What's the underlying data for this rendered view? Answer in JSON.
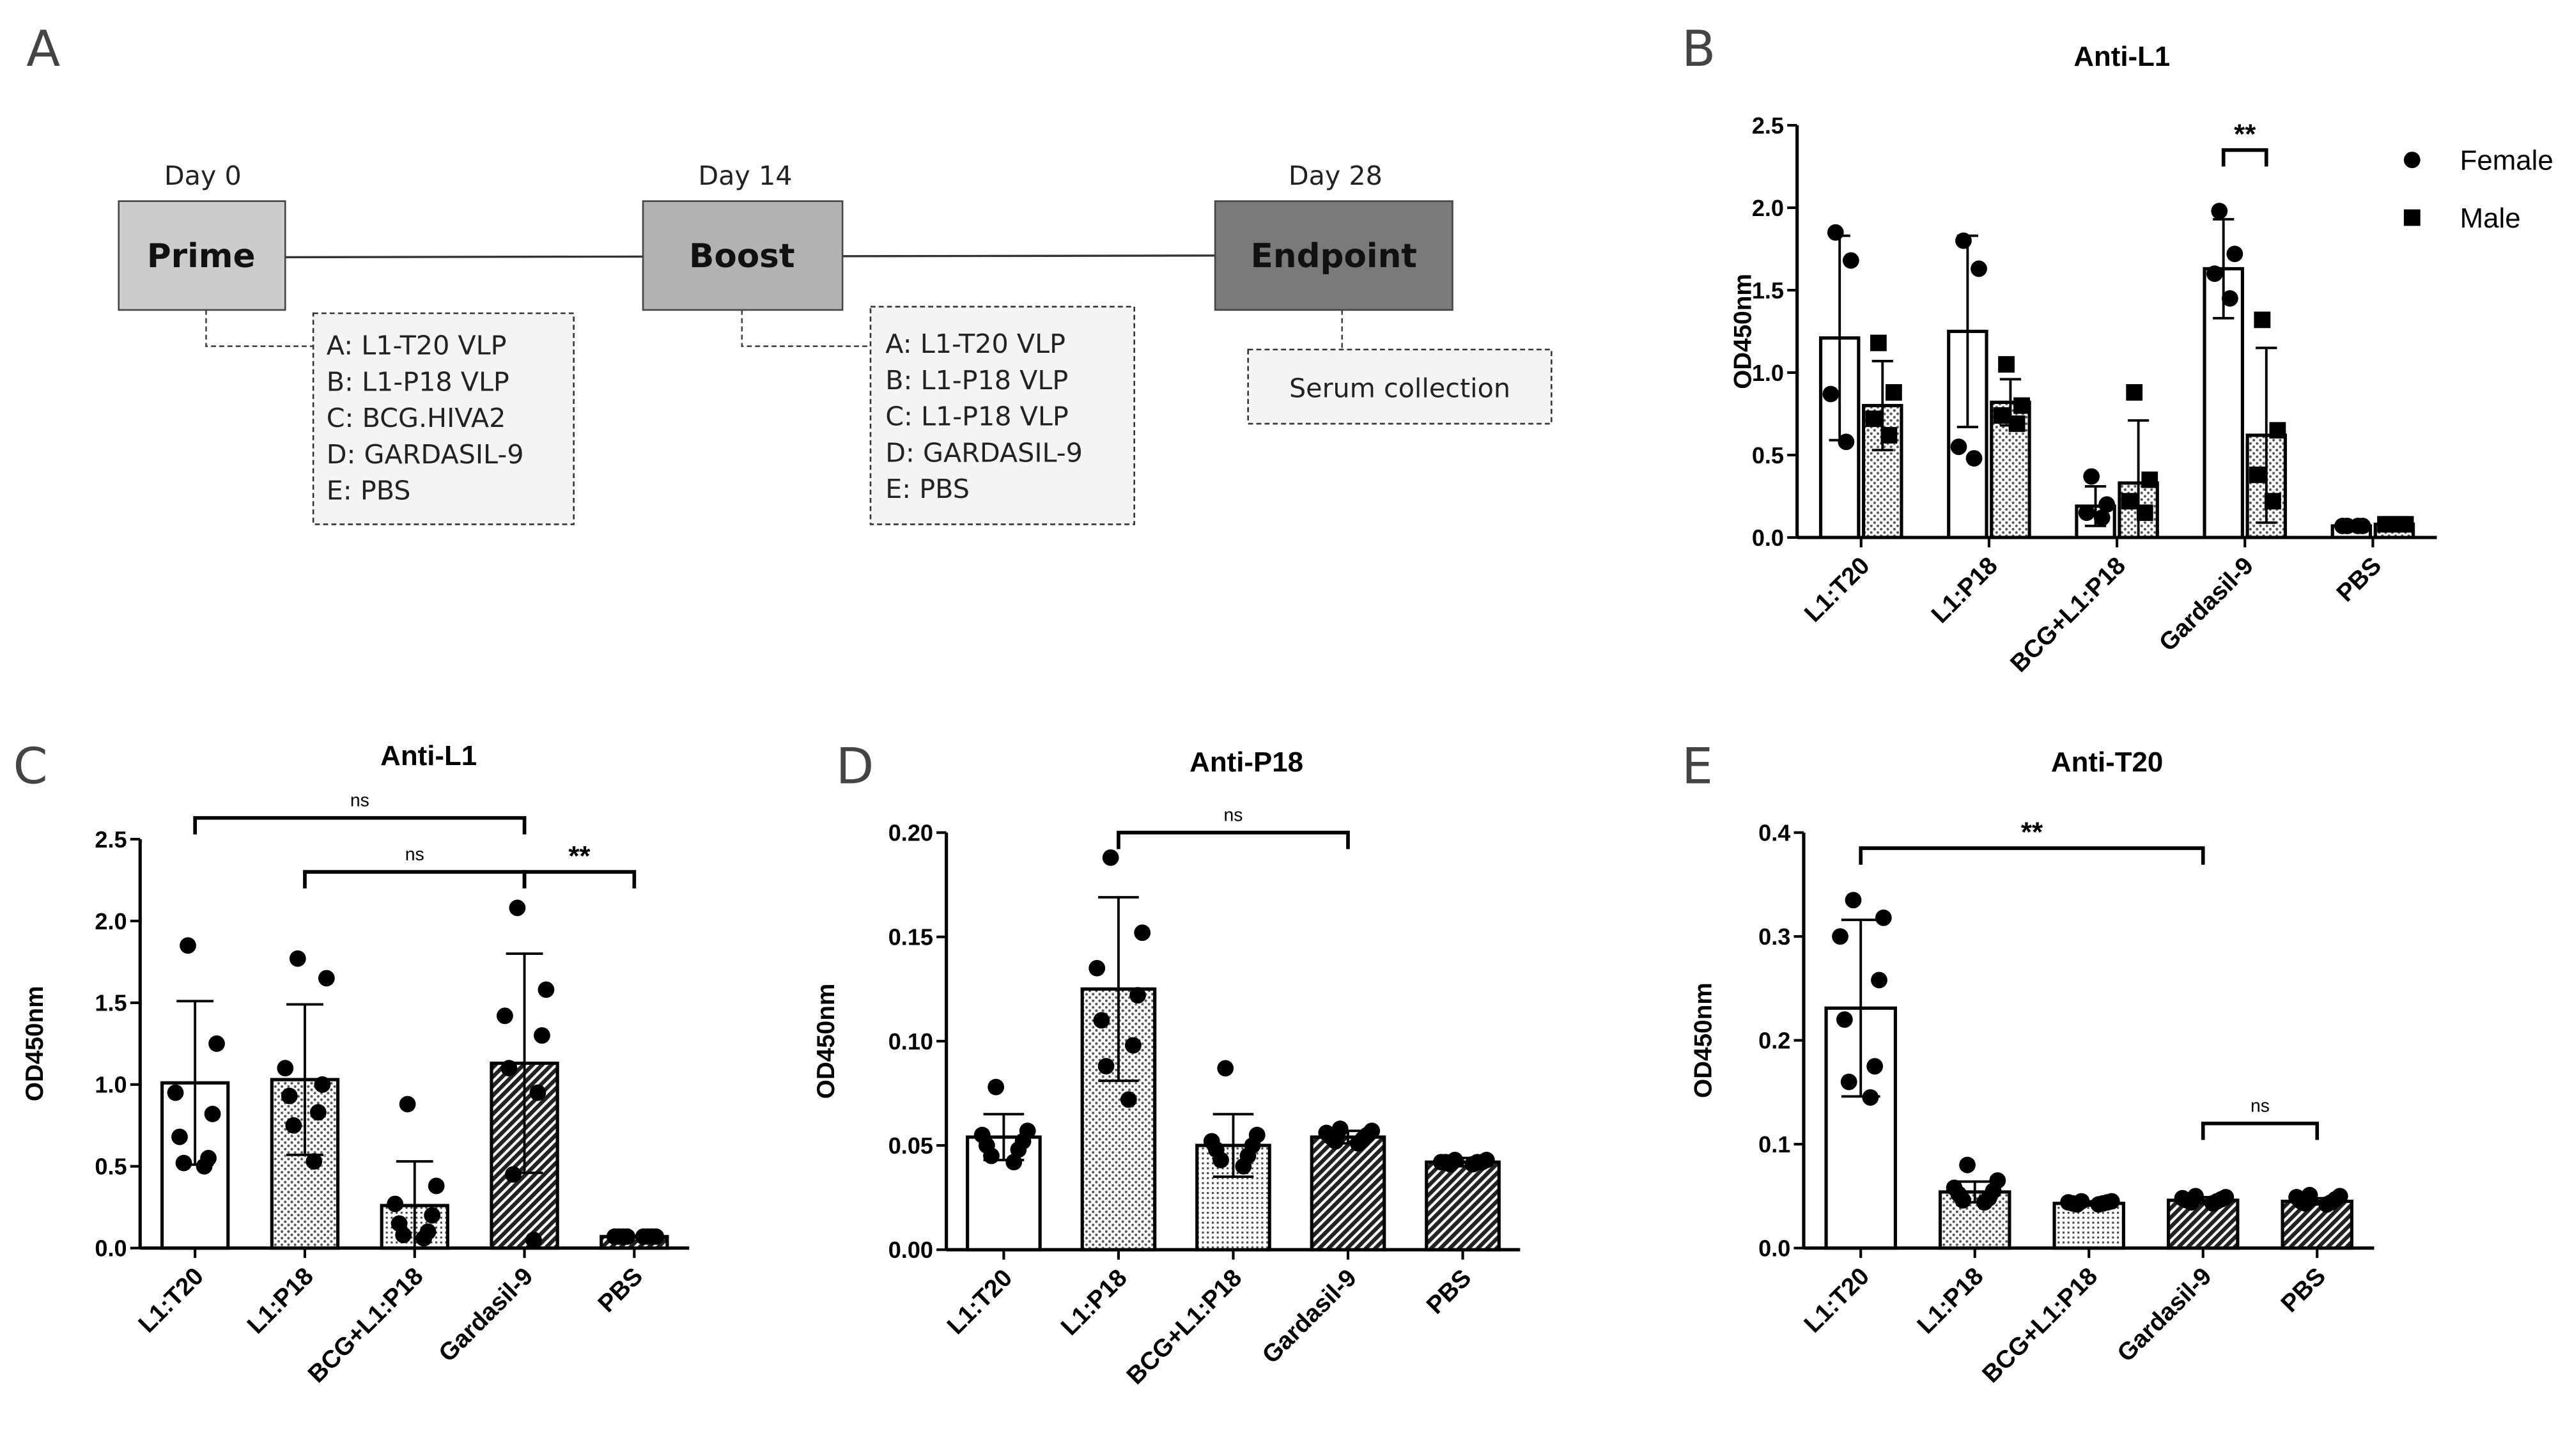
{
  "panel_letters": [
    "A",
    "B",
    "C",
    "D",
    "E"
  ],
  "timeline": {
    "days": [
      "Day 0",
      "Day 14",
      "Day 28"
    ],
    "stages": [
      "Prime",
      "Boost",
      "Endpoint"
    ],
    "prime_groups": [
      "A: L1-T20 VLP",
      "B: L1-P18 VLP",
      "C: BCG.HIVA2",
      "D: GARDASIL-9",
      "E: PBS"
    ],
    "boost_groups": [
      "A: L1-T20 VLP",
      "B: L1-P18 VLP",
      "C: L1-P18 VLP",
      "D: GARDASIL-9",
      "E: PBS"
    ],
    "endpoint_note": "Serum collection",
    "colors": {
      "prime": "#cccccc",
      "boost": "#b2b2b2",
      "endpoint": "#7a7a7a"
    }
  },
  "chart_data": [
    {
      "id": "B",
      "type": "bar",
      "title": "Anti-L1",
      "ylabel": "OD450nm",
      "ylim": [
        0,
        2.5
      ],
      "yticks": [
        "0.0",
        "0.5",
        "1.0",
        "1.5",
        "2.0",
        "2.5"
      ],
      "categories": [
        "L1:T20",
        "L1:P18",
        "BCG+L1:P18",
        "Gardasil-9",
        "PBS"
      ],
      "legend": [
        "Female",
        "Male"
      ],
      "legend_position": "top-right",
      "series": [
        {
          "name": "Female",
          "values": [
            1.21,
            1.25,
            0.19,
            1.63,
            0.07
          ],
          "errors": [
            0.62,
            0.58,
            0.12,
            0.3,
            0.01
          ],
          "points": [
            [
              1.85,
              1.68,
              0.87,
              0.58
            ],
            [
              1.8,
              1.63,
              0.55,
              0.48
            ],
            [
              0.37,
              0.2,
              0.15,
              0.12
            ],
            [
              1.98,
              1.72,
              1.6,
              1.45
            ],
            [
              0.07,
              0.07,
              0.07,
              0.07
            ]
          ]
        },
        {
          "name": "Male",
          "values": [
            0.8,
            0.82,
            0.33,
            0.62,
            0.08
          ],
          "errors": [
            0.27,
            0.14,
            0.38,
            0.53,
            0.005
          ],
          "points": [
            [
              1.18,
              0.88,
              0.72,
              0.62
            ],
            [
              1.05,
              0.8,
              0.74,
              0.69
            ],
            [
              0.88,
              0.35,
              0.22,
              0.15
            ],
            [
              1.32,
              0.65,
              0.38,
              0.22
            ],
            [
              0.08,
              0.08,
              0.08,
              0.08
            ]
          ]
        }
      ],
      "annotations": [
        {
          "label": "**",
          "from": 3,
          "to": 3,
          "dodge": true,
          "y": 2.35
        }
      ]
    },
    {
      "id": "C",
      "type": "bar",
      "title": "Anti-L1",
      "ylabel": "OD450nm",
      "ylim": [
        0,
        2.5
      ],
      "yticks": [
        "0.0",
        "0.5",
        "1.0",
        "1.5",
        "2.0",
        "2.5"
      ],
      "categories": [
        "L1:T20",
        "L1:P18",
        "BCG+L1:P18",
        "Gardasil-9",
        "PBS"
      ],
      "values": [
        1.01,
        1.03,
        0.26,
        1.13,
        0.07
      ],
      "errors": [
        0.5,
        0.46,
        0.27,
        0.67,
        0.005
      ],
      "points": [
        [
          1.85,
          1.25,
          0.95,
          0.82,
          0.68,
          0.55,
          0.52,
          0.5
        ],
        [
          1.77,
          1.65,
          1.1,
          1.0,
          0.93,
          0.83,
          0.75,
          0.53
        ],
        [
          0.88,
          0.38,
          0.27,
          0.2,
          0.15,
          0.1,
          0.08,
          0.06
        ],
        [
          2.08,
          1.58,
          1.42,
          1.3,
          1.1,
          0.95,
          0.45,
          0.05
        ],
        [
          0.07,
          0.07,
          0.07,
          0.07,
          0.07,
          0.07,
          0.07,
          0.07
        ]
      ],
      "annotations": [
        {
          "label": "ns",
          "from": 0,
          "to": 3,
          "y": 2.63
        },
        {
          "label": "ns",
          "from": 1,
          "to": 3,
          "y": 2.3
        },
        {
          "label": "**",
          "from": 3,
          "to": 4,
          "y": 2.3
        }
      ]
    },
    {
      "id": "D",
      "type": "bar",
      "title": "Anti-P18",
      "ylabel": "OD450nm",
      "ylim": [
        0,
        0.2
      ],
      "yticks": [
        "0.00",
        "0.05",
        "0.10",
        "0.15",
        "0.20"
      ],
      "categories": [
        "L1:T20",
        "L1:P18",
        "BCG+L1:P18",
        "Gardasil-9",
        "PBS"
      ],
      "values": [
        0.054,
        0.125,
        0.05,
        0.054,
        0.042
      ],
      "errors": [
        0.011,
        0.044,
        0.015,
        0.003,
        0.002
      ],
      "points": [
        [
          0.078,
          0.057,
          0.055,
          0.052,
          0.05,
          0.048,
          0.045,
          0.042
        ],
        [
          0.188,
          0.152,
          0.135,
          0.122,
          0.11,
          0.098,
          0.088,
          0.072
        ],
        [
          0.087,
          0.055,
          0.052,
          0.05,
          0.048,
          0.045,
          0.043,
          0.04
        ],
        [
          0.058,
          0.057,
          0.056,
          0.055,
          0.054,
          0.053,
          0.052,
          0.051
        ],
        [
          0.043,
          0.043,
          0.042,
          0.042,
          0.042,
          0.042,
          0.041,
          0.041
        ]
      ],
      "annotations": [
        {
          "label": "ns",
          "from": 1,
          "to": 3,
          "y": 0.2
        }
      ]
    },
    {
      "id": "E",
      "type": "bar",
      "title": "Anti-T20",
      "ylabel": "OD450nm",
      "ylim": [
        0,
        0.4
      ],
      "yticks": [
        "0.0",
        "0.1",
        "0.2",
        "0.3",
        "0.4"
      ],
      "categories": [
        "L1:T20",
        "L1:P18",
        "BCG+L1:P18",
        "Gardasil-9",
        "PBS"
      ],
      "values": [
        0.231,
        0.054,
        0.043,
        0.046,
        0.045
      ],
      "errors": [
        0.085,
        0.01,
        0.002,
        0.003,
        0.003
      ],
      "points": [
        [
          0.335,
          0.318,
          0.3,
          0.258,
          0.22,
          0.175,
          0.16,
          0.145
        ],
        [
          0.08,
          0.065,
          0.058,
          0.055,
          0.052,
          0.048,
          0.046,
          0.044
        ],
        [
          0.045,
          0.045,
          0.044,
          0.044,
          0.043,
          0.043,
          0.042,
          0.042
        ],
        [
          0.05,
          0.049,
          0.048,
          0.047,
          0.046,
          0.045,
          0.044,
          0.043
        ],
        [
          0.051,
          0.05,
          0.049,
          0.047,
          0.045,
          0.044,
          0.043,
          0.042
        ]
      ],
      "annotations": [
        {
          "label": "**",
          "from": 0,
          "to": 3,
          "y": 0.385
        },
        {
          "label": "ns",
          "from": 3,
          "to": 4,
          "y": 0.12
        }
      ]
    }
  ]
}
